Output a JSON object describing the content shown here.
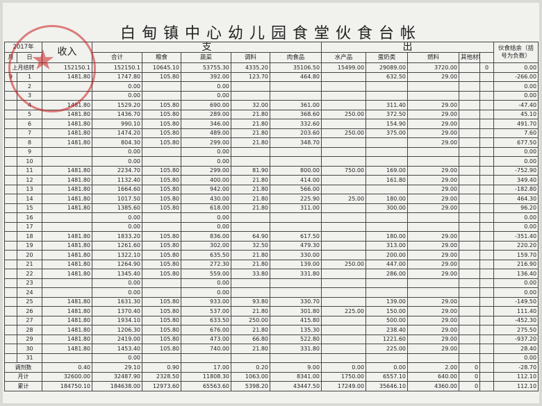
{
  "header": {
    "title": "白甸镇中心幼儿园食堂伙食台帐",
    "year": "2017年",
    "month": "月",
    "day": "日",
    "income": "收入",
    "spend_left": "支",
    "spend_right": "出",
    "balance": "伙食结余（括号为负数）",
    "columns": [
      "合计",
      "粮食",
      "蔬菜",
      "调料",
      "肉食品",
      "水产品",
      "蛋奶类",
      "燃料",
      "其他材料"
    ]
  },
  "table": {
    "rows": [
      {
        "label": "上月结转",
        "cells": [
          "152150.1",
          "152150.1",
          "10645.10",
          "53755.30",
          "4335.20",
          "35106.50",
          "15499.00",
          "29089.00",
          "3720.00",
          null,
          "0",
          "0.00"
        ]
      },
      {
        "month": "9",
        "day": "1",
        "cells": [
          "1481.80",
          "1747.80",
          "105.80",
          "392.00",
          "123.70",
          "464.80",
          null,
          "632.50",
          "29.00",
          null,
          null,
          "-266.00"
        ]
      },
      {
        "day": "2",
        "cells": [
          null,
          "0.00",
          null,
          "0.00",
          null,
          null,
          null,
          null,
          null,
          null,
          null,
          "0.00"
        ]
      },
      {
        "day": "3",
        "cells": [
          null,
          "0.00",
          null,
          "0.00",
          null,
          null,
          null,
          null,
          null,
          null,
          null,
          "0.00"
        ]
      },
      {
        "day": "4",
        "cells": [
          "1481.80",
          "1529.20",
          "105.80",
          "690.00",
          "32.00",
          "361.00",
          null,
          "311.40",
          "29.00",
          null,
          null,
          "-47.40"
        ]
      },
      {
        "day": "5",
        "cells": [
          "1481.80",
          "1436.70",
          "105.80",
          "289.00",
          "21.80",
          "368.60",
          "250.00",
          "372.50",
          "29.00",
          null,
          null,
          "45.10"
        ]
      },
      {
        "day": "6",
        "cells": [
          "1481.80",
          "990.10",
          "105.80",
          "346.00",
          "21.80",
          "332.60",
          null,
          "154.90",
          "29.00",
          null,
          null,
          "491.70"
        ]
      },
      {
        "day": "7",
        "cells": [
          "1481.80",
          "1474.20",
          "105.80",
          "489.00",
          "21.80",
          "203.60",
          "250.00",
          "375.00",
          "29.00",
          null,
          null,
          "7.60"
        ]
      },
      {
        "day": "8",
        "cells": [
          "1481.80",
          "804.30",
          "105.80",
          "299.00",
          "21.80",
          "348.70",
          null,
          null,
          "29.00",
          null,
          null,
          "677.50"
        ]
      },
      {
        "day": "9",
        "cells": [
          null,
          "0.00",
          null,
          "0.00",
          null,
          null,
          null,
          null,
          null,
          null,
          null,
          "0.00"
        ]
      },
      {
        "day": "10",
        "cells": [
          null,
          "0.00",
          null,
          "0.00",
          null,
          null,
          null,
          null,
          null,
          null,
          null,
          "0.00"
        ]
      },
      {
        "day": "11",
        "cells": [
          "1481.80",
          "2234.70",
          "105.80",
          "299.00",
          "81.90",
          "800.00",
          "750.00",
          "169.00",
          "29.00",
          null,
          null,
          "-752.90"
        ]
      },
      {
        "day": "12",
        "cells": [
          "1481.80",
          "1132.40",
          "105.80",
          "400.00",
          "21.80",
          "414.00",
          null,
          "161.80",
          "29.00",
          null,
          null,
          "349.40"
        ]
      },
      {
        "day": "13",
        "cells": [
          "1481.80",
          "1664.60",
          "105.80",
          "942.00",
          "21.80",
          "566.00",
          null,
          null,
          "29.00",
          null,
          null,
          "-182.80"
        ]
      },
      {
        "day": "14",
        "cells": [
          "1481.80",
          "1017.50",
          "105.80",
          "430.00",
          "21.80",
          "225.90",
          "25.00",
          "180.00",
          "29.00",
          null,
          null,
          "464.30"
        ]
      },
      {
        "day": "15",
        "cells": [
          "1481.80",
          "1385.60",
          "105.80",
          "618.00",
          "21.80",
          "311.00",
          null,
          "300.00",
          "29.00",
          null,
          null,
          "96.20"
        ]
      },
      {
        "day": "16",
        "cells": [
          null,
          "0.00",
          null,
          "0.00",
          null,
          null,
          null,
          null,
          null,
          null,
          null,
          "0.00"
        ]
      },
      {
        "day": "17",
        "cells": [
          null,
          "0.00",
          null,
          "0.00",
          null,
          null,
          null,
          null,
          null,
          null,
          null,
          "0.00"
        ]
      },
      {
        "day": "18",
        "cells": [
          "1481.80",
          "1833.20",
          "105.80",
          "836.00",
          "64.90",
          "617.50",
          null,
          "180.00",
          "29.00",
          null,
          null,
          "-351.40"
        ]
      },
      {
        "day": "19",
        "cells": [
          "1481.80",
          "1261.60",
          "105.80",
          "302.00",
          "32.50",
          "479.30",
          null,
          "313.00",
          "29.00",
          null,
          null,
          "220.20"
        ]
      },
      {
        "day": "20",
        "cells": [
          "1481.80",
          "1322.10",
          "105.80",
          "635.50",
          "21.80",
          "330.00",
          null,
          "200.00",
          "29.00",
          null,
          null,
          "159.70"
        ]
      },
      {
        "day": "21",
        "cells": [
          "1481.80",
          "1264.90",
          "105.80",
          "272.30",
          "21.80",
          "139.00",
          "250.00",
          "447.00",
          "29.00",
          null,
          null,
          "216.90"
        ]
      },
      {
        "day": "22",
        "cells": [
          "1481.80",
          "1345.40",
          "105.80",
          "559.00",
          "33.80",
          "331.80",
          null,
          "286.00",
          "29.00",
          null,
          null,
          "136.40"
        ]
      },
      {
        "day": "23",
        "cells": [
          null,
          "0.00",
          null,
          "0.00",
          null,
          null,
          null,
          null,
          null,
          null,
          null,
          "0.00"
        ]
      },
      {
        "day": "24",
        "cells": [
          null,
          "0.00",
          null,
          "0.00",
          null,
          null,
          null,
          null,
          null,
          null,
          null,
          "0.00"
        ]
      },
      {
        "day": "25",
        "cells": [
          "1481.80",
          "1631.30",
          "105.80",
          "933.00",
          "93.80",
          "330.70",
          null,
          "139.00",
          "29.00",
          null,
          null,
          "-149.50"
        ]
      },
      {
        "day": "26",
        "cells": [
          "1481.80",
          "1370.40",
          "105.80",
          "537.00",
          "21.80",
          "301.80",
          "225.00",
          "150.00",
          "29.00",
          null,
          null,
          "111.40"
        ]
      },
      {
        "day": "27",
        "cells": [
          "1481.80",
          "1934.10",
          "105.80",
          "633.50",
          "250.00",
          "415.80",
          null,
          "500.00",
          "29.00",
          null,
          null,
          "-452.30"
        ]
      },
      {
        "day": "28",
        "cells": [
          "1481.80",
          "1206.30",
          "105.80",
          "676.00",
          "21.80",
          "135.30",
          null,
          "238.40",
          "29.00",
          null,
          null,
          "275.50"
        ]
      },
      {
        "day": "29",
        "cells": [
          "1481.80",
          "2419.00",
          "105.80",
          "473.00",
          "66.80",
          "522.80",
          null,
          "1221.60",
          "29.00",
          null,
          null,
          "-937.20"
        ]
      },
      {
        "day": "30",
        "cells": [
          "1481.80",
          "1453.40",
          "105.80",
          "740.00",
          "21.80",
          "331.80",
          null,
          "225.00",
          "29.00",
          null,
          null,
          "28.40"
        ]
      },
      {
        "day": "31",
        "cells": [
          null,
          "0.00",
          null,
          null,
          null,
          null,
          null,
          null,
          null,
          null,
          null,
          "0.00"
        ]
      },
      {
        "label": "调剂数",
        "cells": [
          "0.40",
          "29.10",
          "0.90",
          "17.00",
          "0.20",
          "9.00",
          "0.00",
          "0.00",
          "2.00",
          "0",
          null,
          "-28.70"
        ]
      },
      {
        "label": "月计",
        "cells": [
          "32600.00",
          "32487.90",
          "2328.50",
          "11808.30",
          "1063.00",
          "8341.00",
          "1750.00",
          "6557.10",
          "640.00",
          "0",
          null,
          "112.10"
        ]
      },
      {
        "label": "累计",
        "cells": [
          "184750.10",
          "184638.00",
          "12973.60",
          "65563.60",
          "5398.20",
          "43447.50",
          "17249.00",
          "35646.10",
          "4360.00",
          "0",
          null,
          "112.10"
        ]
      }
    ]
  }
}
